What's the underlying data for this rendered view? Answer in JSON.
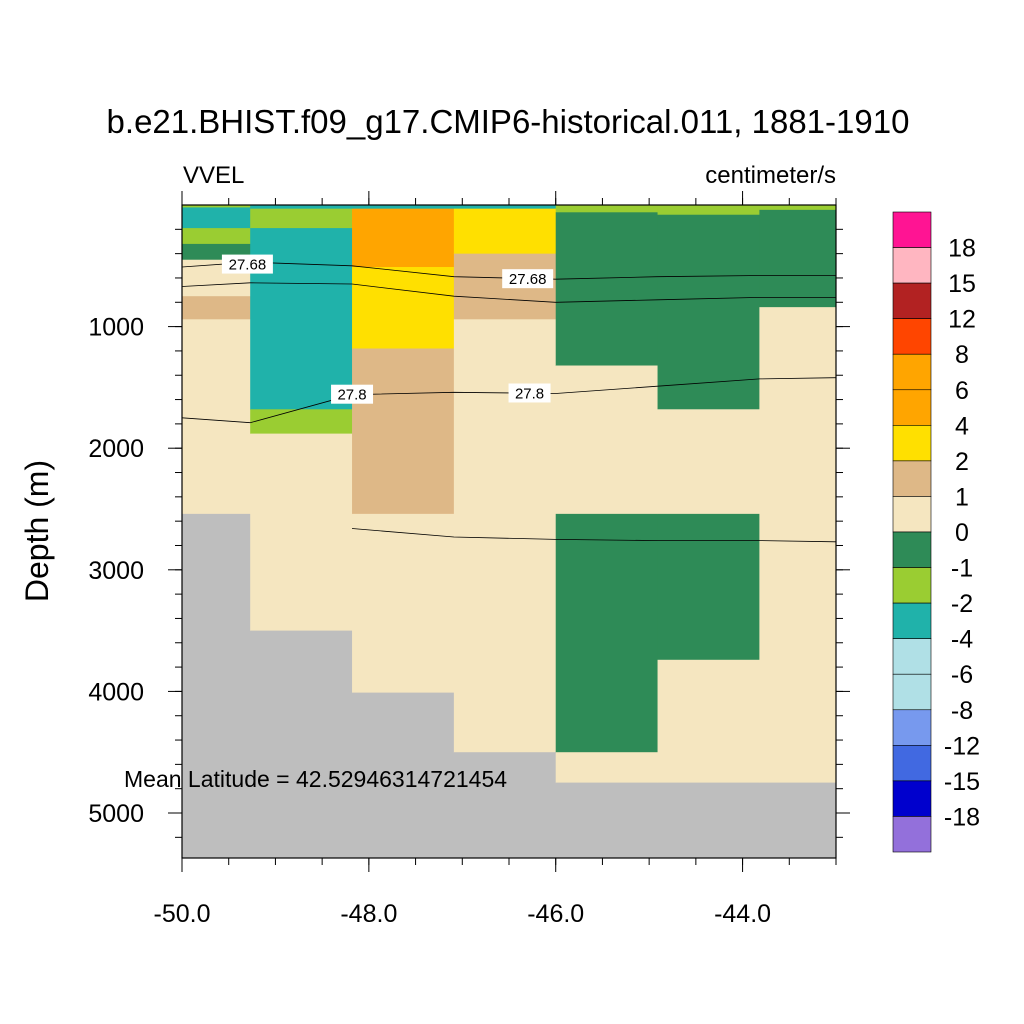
{
  "chart_data": {
    "type": "heatmap",
    "title": "b.e21.BHIST.f09_g17.CMIP6-historical.011, 1881-1910",
    "left_label": "VVEL",
    "right_label": "centimeter/s",
    "ylabel": "Depth (m)",
    "annotation": "Mean Latitude = 42.52946314721454",
    "xlim": [
      -50.0,
      -43.0
    ],
    "ylim": [
      5370,
      0
    ],
    "y_inverted": true,
    "x_ticks": [
      -50.0,
      -48.0,
      -46.0,
      -44.0
    ],
    "x_tick_labels": [
      "-50.0",
      "-48.0",
      "-46.0",
      "-44.0"
    ],
    "y_ticks": [
      1000,
      2000,
      3000,
      4000,
      5000
    ],
    "y_tick_labels": [
      "1000",
      "2000",
      "3000",
      "4000",
      "5000"
    ],
    "colorbar": {
      "labels": [
        "18",
        "15",
        "12",
        "8",
        "6",
        "4",
        "2",
        "1",
        "0",
        "-1",
        "-2",
        "-4",
        "-6",
        "-8",
        "-12",
        "-15",
        "-18"
      ],
      "colors": [
        "#FF1493",
        "#FFB6C1",
        "#B22222",
        "#FF4500",
        "#FFA500",
        "#FFA500",
        "#FFE000",
        "#DEB887",
        "#F5E6C0",
        "#2E8B57",
        "#9ACD32",
        "#20B2AA",
        "#B0E0E6",
        "#B0E0E6",
        "#7799EE",
        "#4169E1",
        "#0000CD",
        "#9370DB"
      ]
    },
    "land_color": "#BEBEBE",
    "cells": [
      {
        "x0": -50.0,
        "x1": -49.27,
        "y0": 0,
        "y1": 190,
        "color": "#2E8B57"
      },
      {
        "x0": -50.0,
        "x1": -49.27,
        "y0": 190,
        "y1": 200,
        "color": "#9ACD32"
      },
      {
        "x0": -50.0,
        "x1": -49.27,
        "y0": 0,
        "y1": 20,
        "color": "#9ACD32"
      },
      {
        "x0": -50.0,
        "x1": -49.27,
        "y0": 20,
        "y1": 190,
        "color": "#20B2AA"
      },
      {
        "x0": -50.0,
        "x1": -49.27,
        "y0": 190,
        "y1": 320,
        "color": "#9ACD32"
      },
      {
        "x0": -50.0,
        "x1": -49.27,
        "y0": 320,
        "y1": 450,
        "color": "#2E8B57"
      },
      {
        "x0": -50.0,
        "x1": -49.27,
        "y0": 450,
        "y1": 750,
        "color": "#F5E6C0"
      },
      {
        "x0": -50.0,
        "x1": -49.27,
        "y0": 750,
        "y1": 940,
        "color": "#DEB887"
      },
      {
        "x0": -50.0,
        "x1": -49.27,
        "y0": 940,
        "y1": 2540,
        "color": "#F5E6C0"
      },
      {
        "x0": -50.0,
        "x1": -49.27,
        "y0": 2540,
        "y1": 5370,
        "color": "#BEBEBE"
      },
      {
        "x0": -49.27,
        "x1": -48.18,
        "y0": 0,
        "y1": 30,
        "color": "#20B2AA"
      },
      {
        "x0": -49.27,
        "x1": -48.18,
        "y0": 30,
        "y1": 190,
        "color": "#9ACD32"
      },
      {
        "x0": -49.27,
        "x1": -48.18,
        "y0": 190,
        "y1": 1680,
        "color": "#20B2AA"
      },
      {
        "x0": -49.27,
        "x1": -48.18,
        "y0": 1680,
        "y1": 1880,
        "color": "#9ACD32"
      },
      {
        "x0": -49.27,
        "x1": -48.18,
        "y0": 1880,
        "y1": 3500,
        "color": "#F5E6C0"
      },
      {
        "x0": -49.27,
        "x1": -48.18,
        "y0": 3500,
        "y1": 5370,
        "color": "#BEBEBE"
      },
      {
        "x0": -48.18,
        "x1": -47.09,
        "y0": 0,
        "y1": 30,
        "color": "#20B2AA"
      },
      {
        "x0": -48.18,
        "x1": -47.09,
        "y0": 30,
        "y1": 510,
        "color": "#FFA500"
      },
      {
        "x0": -48.18,
        "x1": -47.09,
        "y0": 510,
        "y1": 1180,
        "color": "#FFE000"
      },
      {
        "x0": -48.18,
        "x1": -47.09,
        "y0": 1180,
        "y1": 2540,
        "color": "#DEB887"
      },
      {
        "x0": -48.18,
        "x1": -47.09,
        "y0": 2540,
        "y1": 4010,
        "color": "#F5E6C0"
      },
      {
        "x0": -48.18,
        "x1": -47.09,
        "y0": 4010,
        "y1": 5370,
        "color": "#BEBEBE"
      },
      {
        "x0": -47.09,
        "x1": -46.0,
        "y0": 0,
        "y1": 30,
        "color": "#20B2AA"
      },
      {
        "x0": -47.09,
        "x1": -46.0,
        "y0": 30,
        "y1": 400,
        "color": "#FFE000"
      },
      {
        "x0": -47.09,
        "x1": -46.0,
        "y0": 400,
        "y1": 940,
        "color": "#DEB887"
      },
      {
        "x0": -47.09,
        "x1": -46.0,
        "y0": 940,
        "y1": 4500,
        "color": "#F5E6C0"
      },
      {
        "x0": -47.09,
        "x1": -46.0,
        "y0": 4500,
        "y1": 5370,
        "color": "#BEBEBE"
      },
      {
        "x0": -46.0,
        "x1": -44.91,
        "y0": 0,
        "y1": 60,
        "color": "#9ACD32"
      },
      {
        "x0": -46.0,
        "x1": -44.91,
        "y0": 60,
        "y1": 1320,
        "color": "#2E8B57"
      },
      {
        "x0": -46.0,
        "x1": -44.91,
        "y0": 1320,
        "y1": 2540,
        "color": "#F5E6C0"
      },
      {
        "x0": -46.0,
        "x1": -44.91,
        "y0": 2540,
        "y1": 4500,
        "color": "#2E8B57"
      },
      {
        "x0": -46.0,
        "x1": -44.91,
        "y0": 4500,
        "y1": 4750,
        "color": "#F5E6C0"
      },
      {
        "x0": -46.0,
        "x1": -44.91,
        "y0": 4750,
        "y1": 5370,
        "color": "#BEBEBE"
      },
      {
        "x0": -44.91,
        "x1": -43.82,
        "y0": 0,
        "y1": 80,
        "color": "#9ACD32"
      },
      {
        "x0": -44.91,
        "x1": -43.82,
        "y0": 80,
        "y1": 1680,
        "color": "#2E8B57"
      },
      {
        "x0": -44.91,
        "x1": -43.82,
        "y0": 1680,
        "y1": 2540,
        "color": "#F5E6C0"
      },
      {
        "x0": -44.91,
        "x1": -43.82,
        "y0": 2540,
        "y1": 3740,
        "color": "#2E8B57"
      },
      {
        "x0": -44.91,
        "x1": -43.82,
        "y0": 3740,
        "y1": 4750,
        "color": "#F5E6C0"
      },
      {
        "x0": -44.91,
        "x1": -43.82,
        "y0": 4750,
        "y1": 5370,
        "color": "#BEBEBE"
      },
      {
        "x0": -43.82,
        "x1": -43.0,
        "y0": 0,
        "y1": 40,
        "color": "#9ACD32"
      },
      {
        "x0": -43.82,
        "x1": -43.0,
        "y0": 40,
        "y1": 840,
        "color": "#2E8B57"
      },
      {
        "x0": -43.82,
        "x1": -43.0,
        "y0": 840,
        "y1": 4750,
        "color": "#F5E6C0"
      },
      {
        "x0": -43.82,
        "x1": -43.0,
        "y0": 4750,
        "y1": 5370,
        "color": "#BEBEBE"
      }
    ],
    "contours": [
      {
        "level": "27.68",
        "points": [
          [
            -50.0,
            510
          ],
          [
            -49.27,
            470
          ],
          [
            -48.18,
            500
          ],
          [
            -47.09,
            590
          ],
          [
            -46.0,
            610
          ],
          [
            -44.91,
            590
          ],
          [
            -43.82,
            580
          ],
          [
            -43.0,
            580
          ]
        ],
        "label_at": [
          [
            -49.3,
            490
          ],
          [
            -46.3,
            610
          ]
        ]
      },
      {
        "level": "",
        "points": [
          [
            -50.0,
            670
          ],
          [
            -49.27,
            640
          ],
          [
            -48.18,
            650
          ],
          [
            -47.09,
            750
          ],
          [
            -46.0,
            800
          ],
          [
            -44.91,
            780
          ],
          [
            -43.82,
            760
          ],
          [
            -43.0,
            760
          ]
        ],
        "label_at": []
      },
      {
        "level": "27.8",
        "points": [
          [
            -50.0,
            1750
          ],
          [
            -49.27,
            1790
          ],
          [
            -48.18,
            1560
          ],
          [
            -47.09,
            1540
          ],
          [
            -46.0,
            1550
          ],
          [
            -44.91,
            1490
          ],
          [
            -43.82,
            1430
          ],
          [
            -43.0,
            1420
          ]
        ],
        "label_at": [
          [
            -48.18,
            1560
          ],
          [
            -46.28,
            1550
          ]
        ]
      },
      {
        "level": "",
        "points": [
          [
            -48.18,
            2660
          ],
          [
            -47.09,
            2730
          ],
          [
            -46.0,
            2750
          ],
          [
            -44.91,
            2760
          ],
          [
            -43.82,
            2760
          ],
          [
            -43.0,
            2770
          ]
        ],
        "label_at": []
      }
    ]
  }
}
